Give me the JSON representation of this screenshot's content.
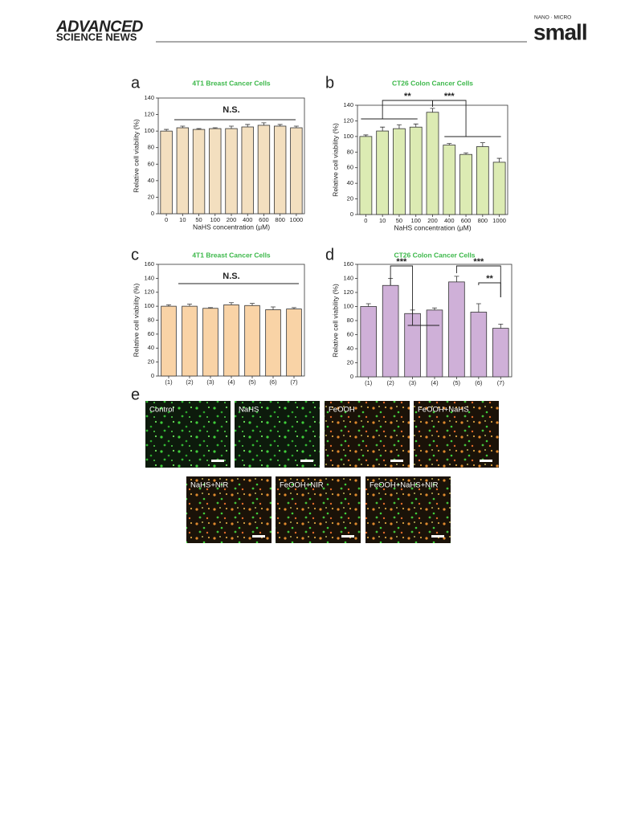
{
  "header": {
    "publisher_line1": "ADVANCED",
    "publisher_line2": "SCIENCE NEWS",
    "journal_tag": "NANO · MICRO",
    "journal": "small"
  },
  "chart_data": [
    {
      "type": "bar",
      "panel": "a",
      "title": "4T1 Breast Cancer Cells",
      "xlabel": "NaHS concentration (μM)",
      "ylabel": "Relative cell viability (%)",
      "categories": [
        "0",
        "10",
        "50",
        "100",
        "200",
        "400",
        "600",
        "800",
        "1000"
      ],
      "values": [
        100,
        104,
        102,
        103,
        103,
        105,
        107,
        106,
        104
      ],
      "errors": [
        2,
        2,
        1,
        1,
        3,
        3,
        3,
        2,
        2
      ],
      "color": "#f3dfbf",
      "ylim": [
        0,
        140
      ],
      "yticks": [
        0,
        20,
        40,
        60,
        80,
        100,
        120,
        140
      ],
      "annotations": [
        "N.S."
      ]
    },
    {
      "type": "bar",
      "panel": "b",
      "title": "CT26 Colon Cancer Cells",
      "xlabel": "NaHS concentration (μM)",
      "ylabel": "Relative cell viability (%)",
      "categories": [
        "0",
        "10",
        "50",
        "100",
        "200",
        "400",
        "600",
        "800",
        "1000"
      ],
      "values": [
        100,
        107,
        110,
        112,
        131,
        89,
        77,
        87,
        67
      ],
      "errors": [
        2,
        5,
        5,
        4,
        5,
        2,
        2,
        5,
        5
      ],
      "color": "#dcebb3",
      "ylim": [
        0,
        140
      ],
      "yticks": [
        0,
        20,
        40,
        60,
        80,
        100,
        120,
        140
      ],
      "annotations": [
        "**",
        "***"
      ]
    },
    {
      "type": "bar",
      "panel": "c",
      "title": "4T1 Breast Cancer Cells",
      "ylabel": "Relative cell viability (%)",
      "categories": [
        "(1)",
        "(2)",
        "(3)",
        "(4)",
        "(5)",
        "(6)",
        "(7)"
      ],
      "values": [
        100,
        100,
        97,
        102,
        101,
        95,
        96
      ],
      "errors": [
        2,
        3,
        1,
        3,
        3,
        4,
        2
      ],
      "color": "#f9d3a6",
      "ylim": [
        0,
        160
      ],
      "yticks": [
        0,
        20,
        40,
        60,
        80,
        100,
        120,
        140,
        160
      ],
      "annotations": [
        "N.S."
      ]
    },
    {
      "type": "bar",
      "panel": "d",
      "title": "CT26 Colon Cancer Cells",
      "ylabel": "Relative cell viability (%)",
      "categories": [
        "(1)",
        "(2)",
        "(3)",
        "(4)",
        "(5)",
        "(6)",
        "(7)"
      ],
      "values": [
        100,
        130,
        90,
        95,
        135,
        92,
        69
      ],
      "errors": [
        4,
        10,
        5,
        3,
        8,
        12,
        6
      ],
      "color": "#cfb0d8",
      "ylim": [
        0,
        160
      ],
      "yticks": [
        0,
        20,
        40,
        60,
        80,
        100,
        120,
        140,
        160
      ],
      "annotations": [
        "***",
        "***",
        "**"
      ]
    }
  ],
  "panel_e": {
    "label": "e",
    "images": [
      "Control",
      "NaHS",
      "FeOOH",
      "FeOOH+NaHS",
      "NaHS+NIR",
      "FeOOH+NIR",
      "FeOOH+NaHS+NIR"
    ]
  }
}
